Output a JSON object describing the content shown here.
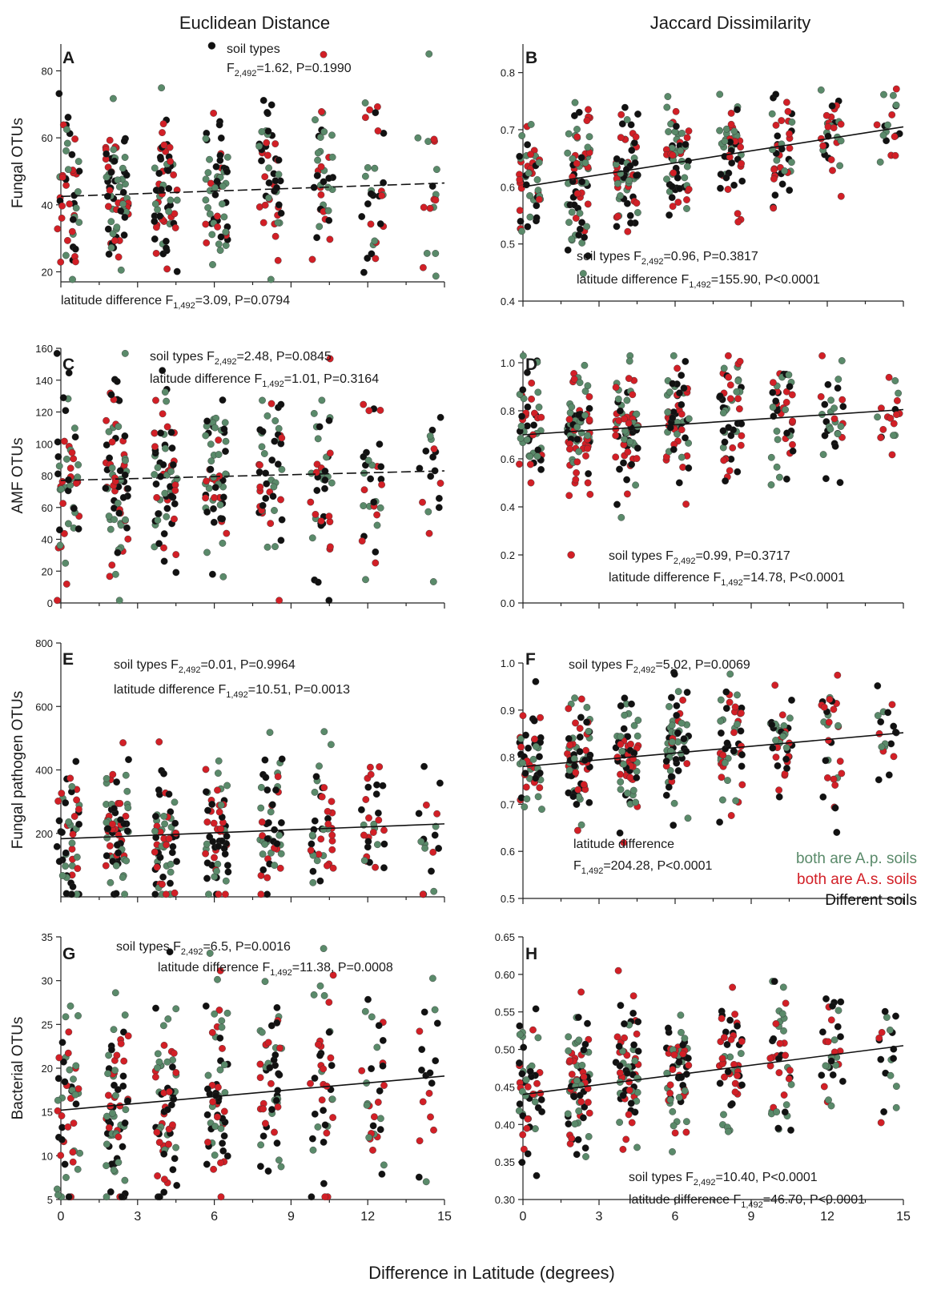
{
  "column_titles": [
    "Euclidean Distance",
    "Jaccard Dissimilarity"
  ],
  "x_axis_label": "Difference in Latitude (degrees)",
  "colors": {
    "green": "#5a8a6a",
    "red": "#d21f26",
    "black": "#111111"
  },
  "legend": {
    "green_label": "both are A.p. soils",
    "red_label": "both are A.s. soils",
    "black_label": "Different soils"
  },
  "chart_data": [
    {
      "panel": "A",
      "type": "scatter",
      "ylabel": "Fungal OTUs",
      "xlim": [
        0,
        15
      ],
      "ylim": [
        17,
        88
      ],
      "xticks": [
        0,
        3,
        6,
        9,
        12,
        15
      ],
      "yticks": [
        20,
        40,
        60,
        80
      ],
      "ytick_labels": [
        "20",
        "40",
        "60",
        "80"
      ],
      "y_center": 43,
      "y_spread": 16,
      "trend": {
        "style": "dashed",
        "x": [
          0,
          15
        ],
        "y": [
          42.5,
          46.5
        ]
      },
      "legend_marker": {
        "x": 5.9,
        "y": 87.5,
        "color": "black"
      },
      "annotations": [
        {
          "text": "soil types",
          "subscript": "",
          "rest": ""
        },
        {
          "text": "F",
          "subscript": "2,492",
          "rest": "=1.62, P=0.1990"
        },
        {
          "text": "latitude difference F",
          "subscript": "1,492",
          "rest": "=3.09, P=0.0794"
        }
      ]
    },
    {
      "panel": "B",
      "type": "scatter",
      "ylabel": "",
      "xlim": [
        0,
        15
      ],
      "ylim": [
        0.4,
        0.85
      ],
      "xticks": [
        0,
        3,
        6,
        9,
        12,
        15
      ],
      "yticks": [
        0.4,
        0.5,
        0.6,
        0.7,
        0.8
      ],
      "ytick_labels": [
        "0.4",
        "0.5",
        "0.6",
        "0.7",
        "0.8"
      ],
      "y_center": 0.64,
      "y_spread": 0.07,
      "trend": {
        "style": "solid",
        "x": [
          0,
          15
        ],
        "y": [
          0.6,
          0.705
        ]
      },
      "annotations": [
        {
          "text": "soil types F",
          "subscript": "2,492",
          "rest": "=0.96, P=0.3817"
        },
        {
          "text": "latitude difference F",
          "subscript": "1,492",
          "rest": "=155.90, P<0.0001"
        }
      ]
    },
    {
      "panel": "C",
      "type": "scatter",
      "ylabel": "AMF OTUs",
      "xlim": [
        0,
        15
      ],
      "ylim": [
        0,
        160
      ],
      "xticks": [
        0,
        3,
        6,
        9,
        12,
        15
      ],
      "yticks": [
        0,
        20,
        40,
        60,
        80,
        100,
        120,
        140,
        160
      ],
      "ytick_labels": [
        "0",
        "20",
        "40",
        "60",
        "80",
        "100",
        "120",
        "140",
        "160"
      ],
      "y_center": 80,
      "y_spread": 40,
      "trend": {
        "style": "dashed",
        "x": [
          0,
          15
        ],
        "y": [
          77,
          83
        ]
      },
      "annotations": [
        {
          "text": "soil types F",
          "subscript": "2,492",
          "rest": "=2.48, P=0.0845"
        },
        {
          "text": "latitude difference F",
          "subscript": "1,492",
          "rest": "=1.01, P=0.3164"
        }
      ]
    },
    {
      "panel": "D",
      "type": "scatter",
      "ylabel": "",
      "xlim": [
        0,
        15
      ],
      "ylim": [
        0,
        1.05
      ],
      "xticks": [
        0,
        3,
        6,
        9,
        12,
        15
      ],
      "yticks": [
        0,
        0.2,
        0.4,
        0.6,
        0.8,
        1.0
      ],
      "ytick_labels": [
        "0.0",
        "0.2",
        "0.4",
        "0.6",
        "0.8",
        "1.0"
      ],
      "y_center": 0.72,
      "y_spread": 0.17,
      "trend": {
        "style": "solid",
        "x": [
          0,
          15
        ],
        "y": [
          0.7,
          0.805
        ]
      },
      "legend_marker": {
        "x": 1.9,
        "y": 0.2,
        "color": "red"
      },
      "annotations": [
        {
          "text": "soil types F",
          "subscript": "2,492",
          "rest": "=0.99, P=0.3717"
        },
        {
          "text": "latitude difference F",
          "subscript": "1,492",
          "rest": "=14.78, P<0.0001"
        }
      ]
    },
    {
      "panel": "E",
      "type": "scatter",
      "ylabel": "Fungal pathogen OTUs",
      "xlim": [
        0,
        15
      ],
      "ylim": [
        0,
        800
      ],
      "xticks": [
        0,
        3,
        6,
        9,
        12,
        15
      ],
      "yticks": [
        200,
        400,
        600,
        800
      ],
      "ytick_labels": [
        "200",
        "400",
        "600",
        "800"
      ],
      "y_center": 180,
      "y_spread": 150,
      "trend": {
        "style": "solid",
        "x": [
          0,
          15
        ],
        "y": [
          183,
          230
        ]
      },
      "annotations": [
        {
          "text": "soil types F",
          "subscript": "2,492",
          "rest": "=0.01, P=0.9964"
        },
        {
          "text": "latitude difference F",
          "subscript": "1,492",
          "rest": "=10.51, P=0.0013"
        }
      ]
    },
    {
      "panel": "F",
      "type": "scatter",
      "ylabel": "",
      "xlim": [
        0,
        15
      ],
      "ylim": [
        0.5,
        1.0
      ],
      "xticks": [
        0,
        3,
        6,
        9,
        12,
        15
      ],
      "yticks": [
        0.5,
        0.6,
        0.7,
        0.8,
        0.9,
        1.0
      ],
      "ytick_labels": [
        "0.5",
        "0.6",
        "0.7",
        "0.8",
        "0.9",
        "1.0"
      ],
      "y_center": 0.8,
      "y_spread": 0.08,
      "trend": {
        "style": "solid",
        "x": [
          0,
          15
        ],
        "y": [
          0.78,
          0.852
        ]
      },
      "annotations": [
        {
          "text": "soil types F",
          "subscript": "2,492",
          "rest": "=5.02, P=0.0069"
        },
        {
          "text": "latitude difference",
          "subscript": "",
          "rest": ""
        },
        {
          "text": "F",
          "subscript": "1,492",
          "rest": "=204.28, P<0.0001"
        }
      ]
    },
    {
      "panel": "G",
      "type": "scatter",
      "ylabel": "Bacterial OTUs",
      "xlim": [
        0,
        15
      ],
      "ylim": [
        5,
        35
      ],
      "xticks": [
        0,
        3,
        6,
        9,
        12,
        15
      ],
      "yticks": [
        5,
        10,
        15,
        20,
        25,
        30,
        35
      ],
      "ytick_labels": [
        "5",
        "10",
        "15",
        "20",
        "25",
        "30",
        "35"
      ],
      "y_center": 17,
      "y_spread": 8,
      "trend": {
        "style": "solid",
        "x": [
          0,
          15
        ],
        "y": [
          15.2,
          19.1
        ]
      },
      "annotations": [
        {
          "text": "soil types F",
          "subscript": "2,492",
          "rest": "=6.5, P=0.0016"
        },
        {
          "text": "latitude difference F",
          "subscript": "1,492",
          "rest": "=11.38, P=0.0008"
        }
      ]
    },
    {
      "panel": "H",
      "type": "scatter",
      "ylabel": "",
      "xlim": [
        0,
        15
      ],
      "ylim": [
        0.3,
        0.65
      ],
      "xticks": [
        0,
        3,
        6,
        9,
        12,
        15
      ],
      "yticks": [
        0.3,
        0.35,
        0.4,
        0.45,
        0.5,
        0.55,
        0.6,
        0.65
      ],
      "ytick_labels": [
        "0.30",
        "0.35",
        "0.40",
        "0.45",
        "0.50",
        "0.55",
        "0.60",
        "0.65"
      ],
      "y_center": 0.46,
      "y_spread": 0.06,
      "trend": {
        "style": "solid",
        "x": [
          0,
          15
        ],
        "y": [
          0.44,
          0.505
        ]
      },
      "annotations": [
        {
          "text": "soil types F",
          "subscript": "2,492",
          "rest": "=10.40, P<0.0001"
        },
        {
          "text": "latitude difference F",
          "subscript": "1,492",
          "rest": "=46.70, P<0.0001"
        }
      ]
    }
  ]
}
